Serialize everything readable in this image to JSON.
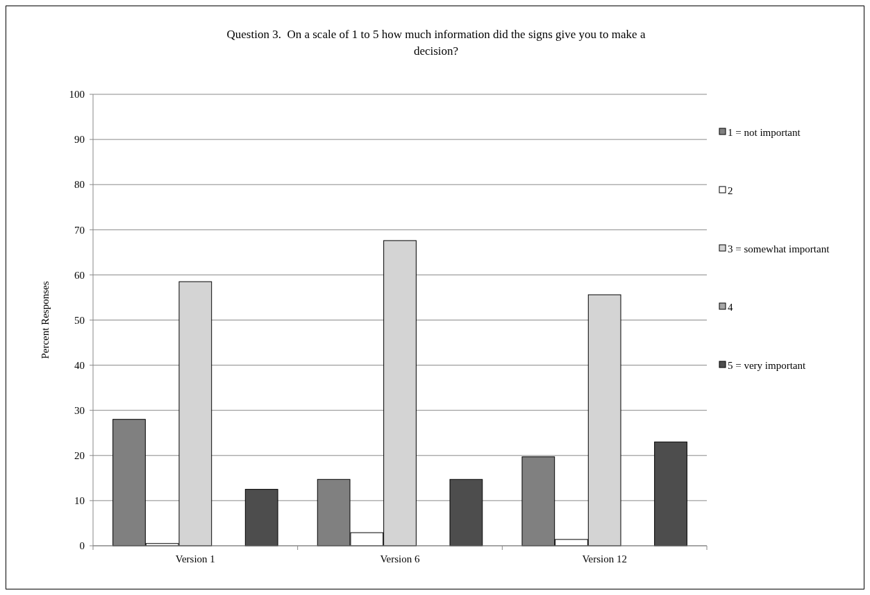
{
  "chart_data": {
    "type": "bar",
    "title": "Question 3.  On a scale of 1 to 5 how much information did the signs give you to make a decision?",
    "ylabel": "Percent Responses",
    "categories": [
      "Version 1",
      "Version 6",
      "Version 12"
    ],
    "series": [
      {
        "name": "1 = not important",
        "color": "#808080",
        "values": [
          28,
          14.7,
          19.7
        ]
      },
      {
        "name": "2",
        "color": "#ffffff",
        "values": [
          0.5,
          2.9,
          1.4
        ]
      },
      {
        "name": "3 = somewhat important",
        "color": "#d4d4d4",
        "values": [
          58.5,
          67.6,
          55.6
        ]
      },
      {
        "name": "4",
        "color": "#a6a6a6",
        "values": [
          0,
          0,
          0
        ]
      },
      {
        "name": "5 = very important",
        "color": "#4d4d4d",
        "values": [
          12.5,
          14.7,
          23
        ]
      }
    ],
    "ylim": [
      0,
      100
    ],
    "yticks": [
      0,
      10,
      20,
      30,
      40,
      50,
      60,
      70,
      80,
      90,
      100
    ],
    "grid": "y",
    "legend": "right"
  }
}
